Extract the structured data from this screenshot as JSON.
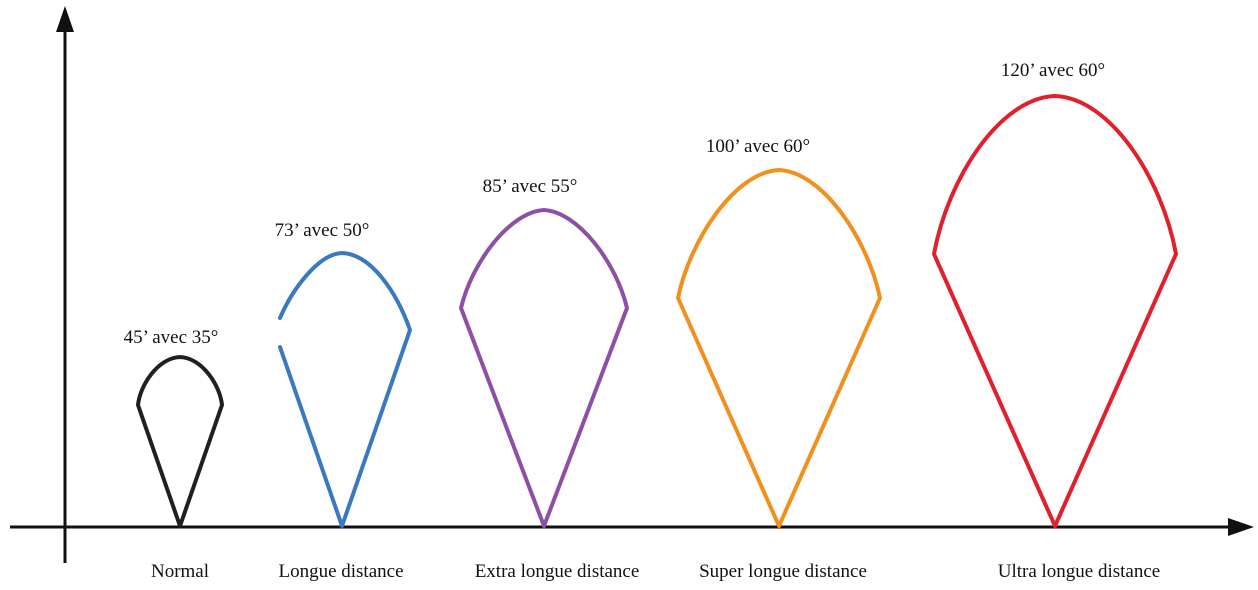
{
  "axes": {
    "color": "#111111"
  },
  "beams": [
    {
      "id": "normal",
      "category": "Normal",
      "label": "45’ avec 35°",
      "color": "#231f20"
    },
    {
      "id": "long",
      "category": "Longue distance",
      "label": "73’ avec 50°",
      "color": "#3a78c0"
    },
    {
      "id": "extra",
      "category": "Extra longue distance",
      "label": "85’ avec 55°",
      "color": "#8e4fa6"
    },
    {
      "id": "super",
      "category": "Super longue distance",
      "label": "100’ avec 60°",
      "color": "#f0901e"
    },
    {
      "id": "ultra",
      "category": "Ultra longue distance",
      "label": "120’ avec 60°",
      "color": "#e0202a"
    }
  ]
}
